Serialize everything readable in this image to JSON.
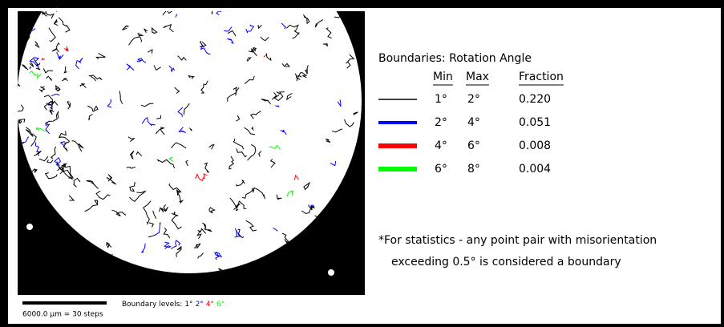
{
  "legend": {
    "title": "Boundaries: Rotation Angle",
    "columns": [
      "Min",
      "Max",
      "Fraction"
    ],
    "rows": [
      {
        "min": "1°",
        "max": "2°",
        "fraction": "0.220",
        "color": "#000000"
      },
      {
        "min": "2°",
        "max": "4°",
        "fraction": "0.051",
        "color": "#0000ff"
      },
      {
        "min": "4°",
        "max": "6°",
        "fraction": "0.008",
        "color": "#ff0000"
      },
      {
        "min": "6°",
        "max": "8°",
        "fraction": "0.004",
        "color": "#00ff00"
      }
    ],
    "footnote": [
      "*For statistics - any point pair with misorientation",
      "exceeding 0.5° is considered a boundary"
    ]
  },
  "map": {
    "scale_label": "6000.0 µm = 30 steps",
    "levels_label": "Boundary levels:",
    "levels": [
      {
        "text": "1°",
        "color": "#000000"
      },
      {
        "text": "2°",
        "color": "#0000ff"
      },
      {
        "text": "4°",
        "color": "#ff0000"
      },
      {
        "text": "6°",
        "color": "#00ff00"
      }
    ]
  }
}
